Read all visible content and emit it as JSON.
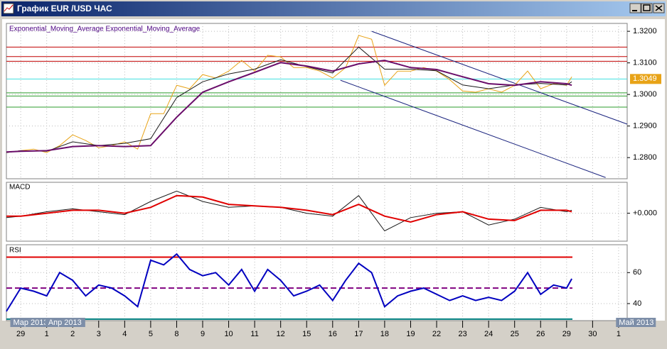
{
  "window": {
    "title": "График EUR /USD  ЧАС"
  },
  "chart_data": [
    {
      "type": "line",
      "legend": "Exponential_Moving_Average Exponential_Moving_Average",
      "xlim": [
        -0.55,
        23.33
      ],
      "ylim": [
        1.2733,
        1.3225
      ],
      "yticks": [
        {
          "value": 1.32,
          "label": "1.3200"
        },
        {
          "value": 1.31,
          "label": "1.3100"
        },
        {
          "value": 1.3,
          "label": "1.3000"
        },
        {
          "value": 1.29,
          "label": "1.2900"
        },
        {
          "value": 1.28,
          "label": "1.2800"
        }
      ],
      "series": [
        {
          "color": "#e8a317",
          "x": [
            -0.55,
            0,
            0.5,
            1,
            1.5,
            2,
            2.5,
            3,
            3.5,
            4,
            4.5,
            5,
            5.5,
            6,
            6.5,
            7,
            7.5,
            8,
            8.5,
            9,
            9.5,
            10,
            10.5,
            11,
            11.5,
            12,
            12.5,
            13,
            13.5,
            14,
            14.5,
            15,
            15.5,
            16,
            16.5,
            17,
            17.5,
            18,
            18.5,
            19,
            19.5,
            20,
            20.5,
            21,
            21.2
          ],
          "values": [
            1.2816,
            1.2822,
            1.2827,
            1.2816,
            1.2838,
            1.2872,
            1.2854,
            1.2831,
            1.2838,
            1.285,
            1.2827,
            1.2939,
            1.2939,
            1.3029,
            1.3018,
            1.3063,
            1.3052,
            1.3074,
            1.3108,
            1.3074,
            1.3124,
            1.3119,
            1.3085,
            1.3085,
            1.3074,
            1.3052,
            1.3085,
            1.3187,
            1.3175,
            1.3029,
            1.3074,
            1.3074,
            1.3085,
            1.3074,
            1.3047,
            1.3011,
            1.3007,
            1.3018,
            1.3007,
            1.3029,
            1.3074,
            1.3018,
            1.3034,
            1.3029,
            1.3056
          ]
        },
        {
          "color": "#1a1a1a",
          "x": [
            -0.55,
            0,
            1,
            2,
            3,
            4,
            5,
            6,
            7,
            8,
            9,
            10,
            11,
            12,
            13,
            14,
            15,
            16,
            17,
            18,
            19,
            20,
            21,
            21.2
          ],
          "values": [
            1.2816,
            1.2822,
            1.282,
            1.285,
            1.2838,
            1.2845,
            1.286,
            1.299,
            1.304,
            1.3065,
            1.308,
            1.311,
            1.3088,
            1.3068,
            1.315,
            1.308,
            1.308,
            1.3075,
            1.303,
            1.3018,
            1.303,
            1.3035,
            1.303,
            1.304
          ]
        },
        {
          "color": "#6a0d6a",
          "x": [
            -0.55,
            0,
            1,
            2,
            3,
            4,
            5,
            6,
            7,
            8,
            9,
            10,
            11,
            12,
            13,
            14,
            15,
            16,
            17,
            18,
            19,
            20,
            21,
            21.2
          ],
          "values": [
            1.2818,
            1.282,
            1.2822,
            1.2835,
            1.2838,
            1.2835,
            1.2838,
            1.2928,
            1.3007,
            1.304,
            1.307,
            1.3101,
            1.309,
            1.3074,
            1.3097,
            1.3108,
            1.3085,
            1.3079,
            1.3056,
            1.3034,
            1.3029,
            1.304,
            1.3034,
            1.3029
          ]
        }
      ],
      "levels": [
        {
          "value": 1.315,
          "color": "#c00000"
        },
        {
          "value": 1.312,
          "color": "#c00000"
        },
        {
          "value": 1.3105,
          "color": "#c00000"
        },
        {
          "value": 1.3049,
          "color": "#40e0e0"
        },
        {
          "value": 1.3005,
          "color": "#2e9e2e"
        },
        {
          "value": 1.2995,
          "color": "#2e9e2e"
        },
        {
          "value": 1.296,
          "color": "#2e9e2e"
        }
      ],
      "trendlines": [
        {
          "x": [
            13.5,
            23.33
          ],
          "values": [
            1.32,
            1.2906
          ]
        },
        {
          "x": [
            12.3,
            22.5
          ],
          "values": [
            1.3045,
            1.2737
          ]
        }
      ],
      "price_label": {
        "value": 1.3049,
        "label": "1.3049",
        "color": "#e8a317"
      }
    },
    {
      "type": "line",
      "title": "MACD",
      "xlim": [
        -0.55,
        23.33
      ],
      "ylim": [
        -0.0019,
        0.0021
      ],
      "yticks": [
        {
          "value": 0,
          "label": "+0.000"
        }
      ],
      "series": [
        {
          "color": "#1a1a1a",
          "x": [
            -0.55,
            0,
            1,
            2,
            3,
            4,
            5,
            6,
            7,
            8,
            9,
            10,
            11,
            12,
            13,
            14,
            15,
            16,
            17,
            18,
            19,
            20,
            21,
            21.2
          ],
          "values": [
            -0.0003,
            -0.0002,
            0.0001,
            0.0003,
            0.0001,
            -0.0001,
            0.0008,
            0.0015,
            0.0008,
            0.0004,
            0.0005,
            0.0004,
            0,
            -0.0002,
            0.0012,
            -0.0012,
            -0.0003,
            0,
            0.0001,
            -0.0008,
            -0.0004,
            0.0004,
            0.0001,
            0.0002
          ]
        },
        {
          "color": "#e00000",
          "x": [
            -0.55,
            0,
            1,
            2,
            3,
            4,
            5,
            6,
            7,
            8,
            9,
            10,
            11,
            12,
            13,
            14,
            15,
            16,
            17,
            18,
            19,
            20,
            21,
            21.2
          ],
          "values": [
            -0.0002,
            -0.0002,
            0,
            0.0002,
            0.0002,
            0,
            0.0004,
            0.0012,
            0.0011,
            0.0006,
            0.0005,
            0.0004,
            0.0002,
            -0.0001,
            0.0006,
            -0.0002,
            -0.0006,
            -0.0001,
            0.0001,
            -0.0004,
            -0.0005,
            0.0002,
            0.0002,
            0.0001
          ]
        }
      ]
    },
    {
      "type": "line",
      "title": "RSI",
      "xlim": [
        -0.55,
        23.33
      ],
      "ylim": [
        29,
        78
      ],
      "yticks": [
        40,
        60
      ],
      "series": [
        {
          "color": "#0000c0",
          "x": [
            -0.55,
            0,
            0.5,
            1,
            1.5,
            2,
            2.5,
            3,
            3.5,
            4,
            4.5,
            5,
            5.5,
            6,
            6.5,
            7,
            7.5,
            8,
            8.5,
            9,
            9.5,
            10,
            10.5,
            11,
            11.5,
            12,
            12.5,
            13,
            13.5,
            14,
            14.5,
            15,
            15.5,
            16,
            16.5,
            17,
            17.5,
            18,
            18.5,
            19,
            19.5,
            20,
            20.5,
            21,
            21.2
          ],
          "values": [
            35,
            50,
            48,
            45,
            60,
            55,
            45,
            52,
            50,
            45,
            38,
            68,
            65,
            72,
            62,
            58,
            60,
            52,
            62,
            48,
            62,
            55,
            45,
            48,
            52,
            42,
            55,
            66,
            60,
            38,
            45,
            48,
            50,
            46,
            42,
            45,
            42,
            44,
            42,
            48,
            60,
            46,
            52,
            50,
            56
          ]
        }
      ],
      "levels": [
        {
          "value": 70,
          "color": "#e00000"
        },
        {
          "value": 50,
          "color": "#800080",
          "style": "dashed"
        },
        {
          "value": 30,
          "color": "#008080"
        }
      ],
      "xticks": [
        {
          "value": 0,
          "label": "29"
        },
        {
          "value": 1,
          "label": "1"
        },
        {
          "value": 2,
          "label": "2"
        },
        {
          "value": 3,
          "label": "3"
        },
        {
          "value": 4,
          "label": "4"
        },
        {
          "value": 5,
          "label": "5"
        },
        {
          "value": 6,
          "label": "8"
        },
        {
          "value": 7,
          "label": "9"
        },
        {
          "value": 8,
          "label": "10"
        },
        {
          "value": 9,
          "label": "11"
        },
        {
          "value": 10,
          "label": "12"
        },
        {
          "value": 11,
          "label": "15"
        },
        {
          "value": 12,
          "label": "16"
        },
        {
          "value": 13,
          "label": "17"
        },
        {
          "value": 14,
          "label": "18"
        },
        {
          "value": 15,
          "label": "19"
        },
        {
          "value": 16,
          "label": "22"
        },
        {
          "value": 17,
          "label": "23"
        },
        {
          "value": 18,
          "label": "24"
        },
        {
          "value": 19,
          "label": "25"
        },
        {
          "value": 20,
          "label": "26"
        },
        {
          "value": 21,
          "label": "29"
        },
        {
          "value": 22,
          "label": "30"
        },
        {
          "value": 23,
          "label": "1"
        }
      ],
      "periods": [
        {
          "value": -0.4,
          "label": "Мар 2013"
        },
        {
          "value": 0.95,
          "label": "Апр 2013"
        },
        {
          "value": 22.9,
          "label": "Май 2013"
        }
      ]
    }
  ]
}
